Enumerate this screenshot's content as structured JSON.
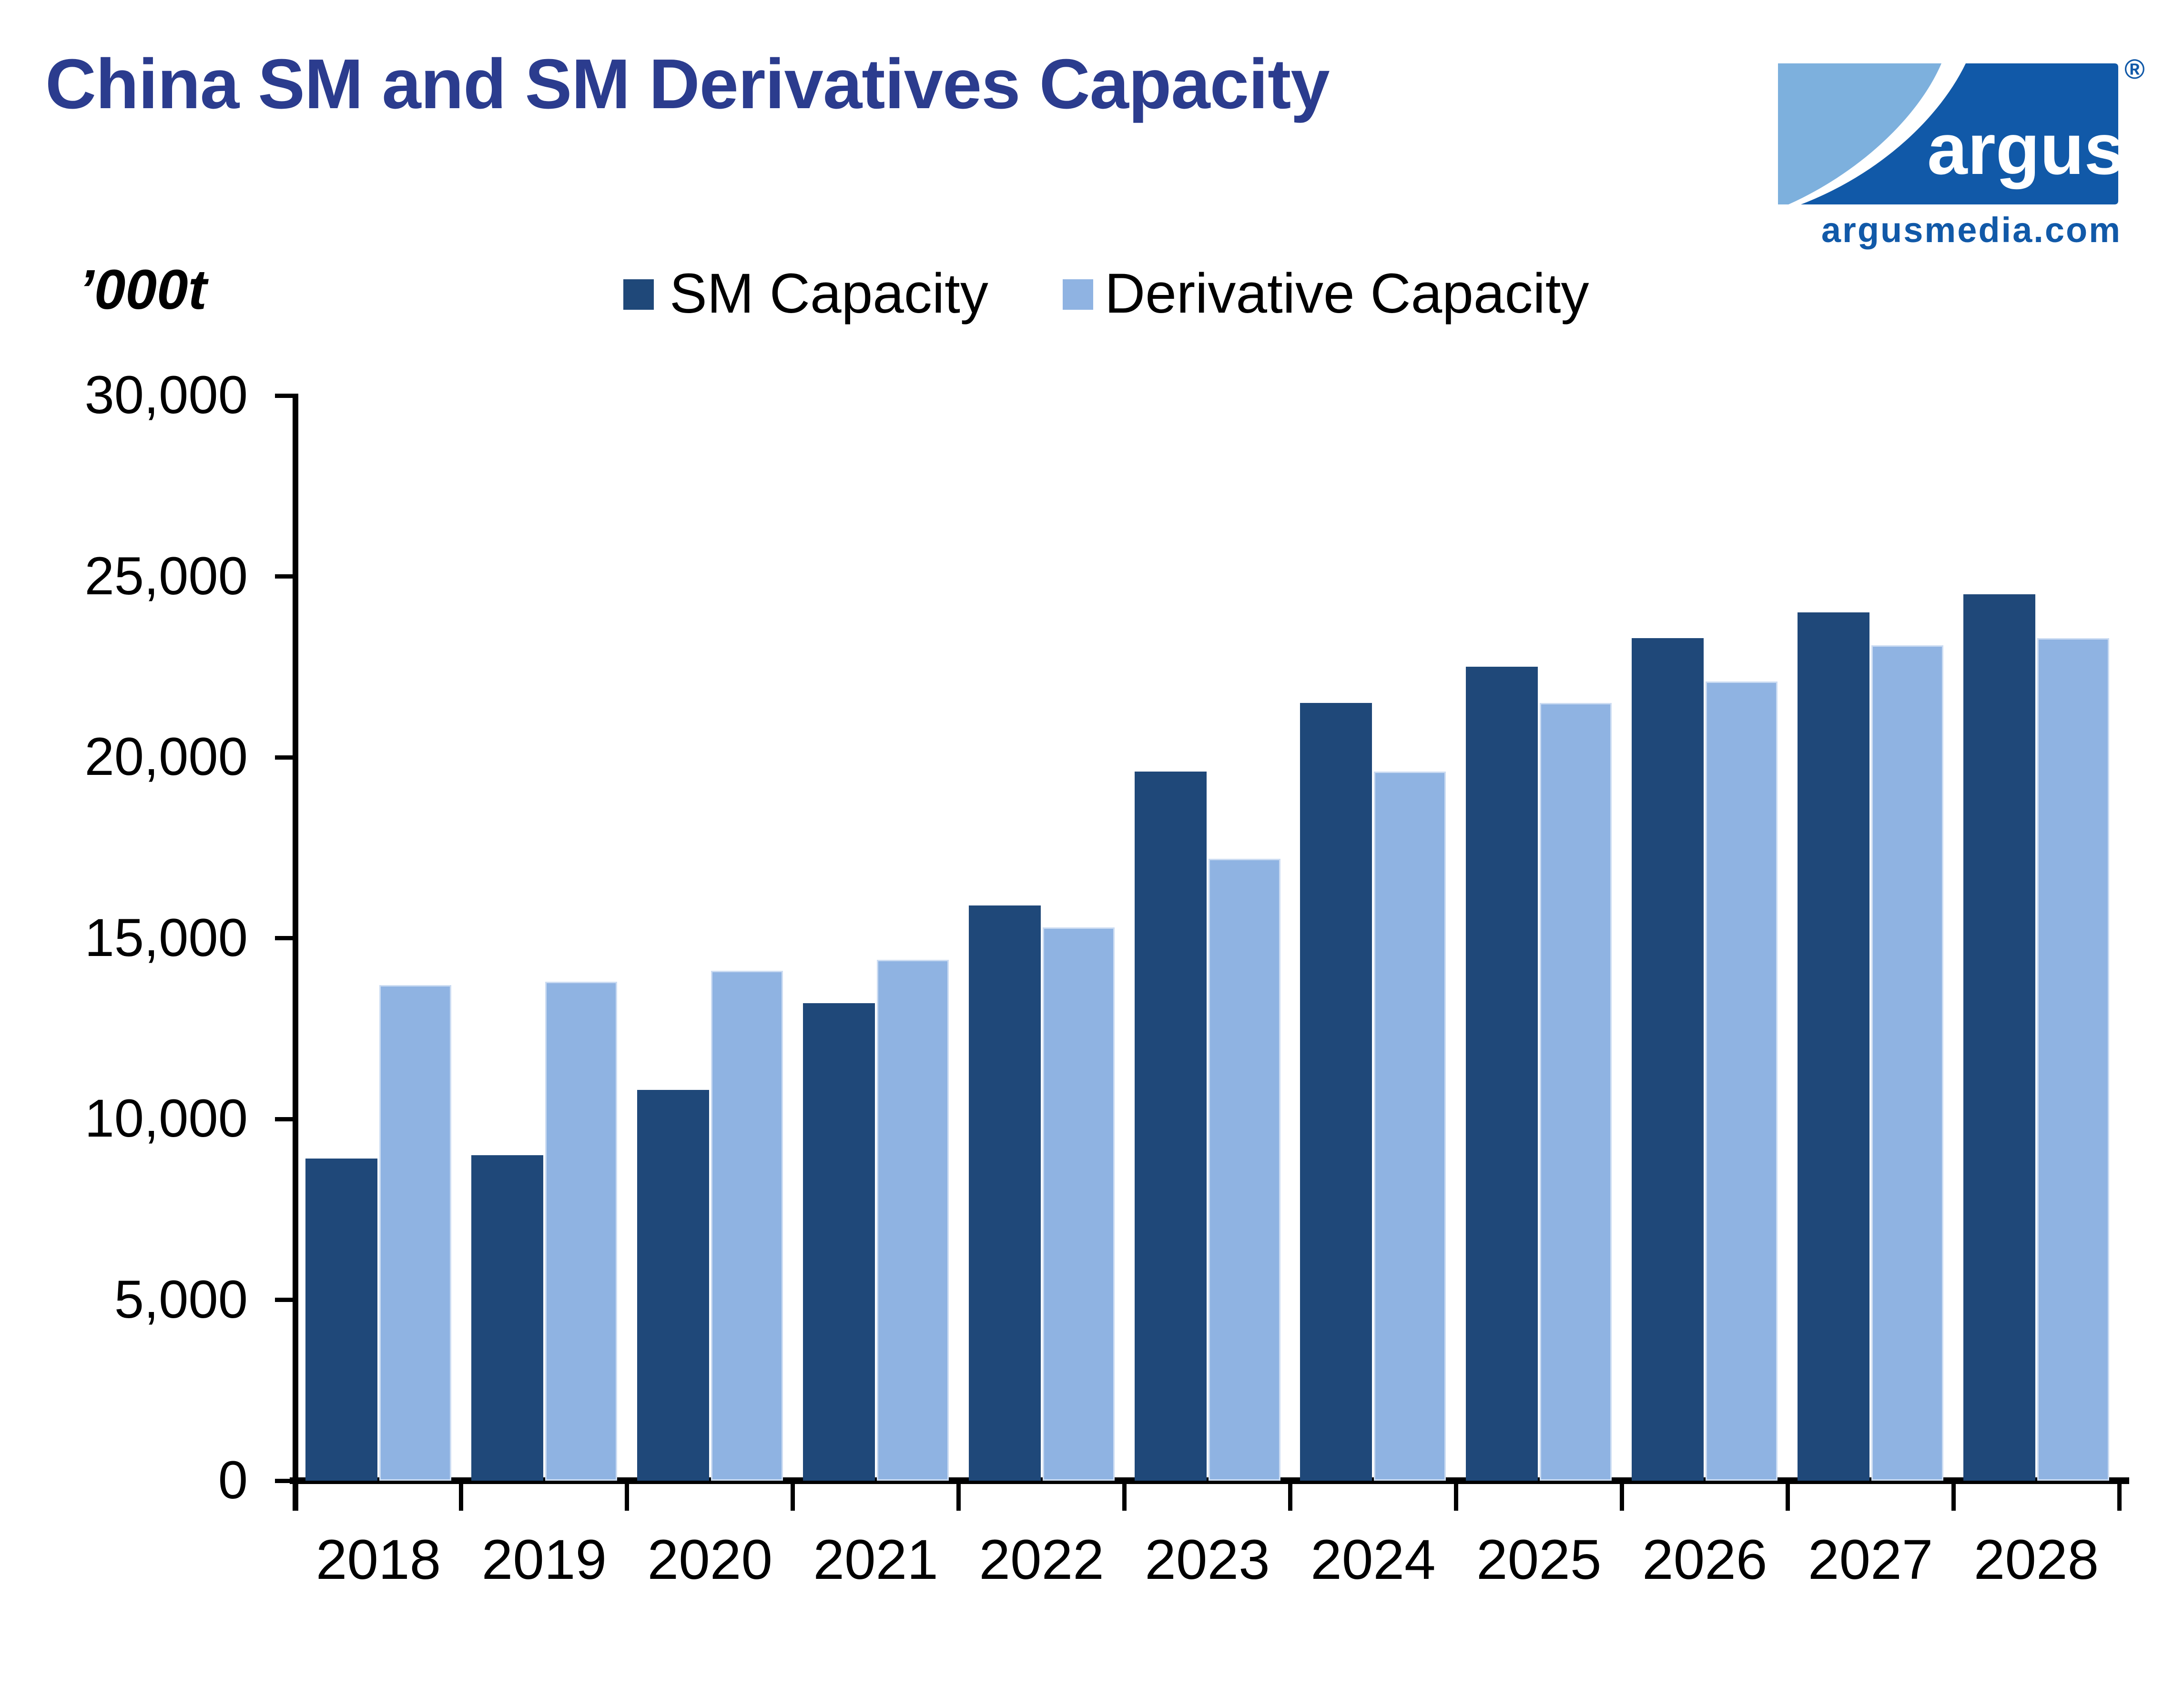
{
  "header": {
    "title": "China SM and SM Derivatives Capacity",
    "title_color": "#2B3C8E"
  },
  "logo": {
    "brand": "argus",
    "registered_mark": "®",
    "site": "argusmedia.com",
    "dark_blue": "#1159A8",
    "light_blue": "#7DB0DD"
  },
  "axis": {
    "unit_label": "’000t",
    "y_tick_labels": [
      "0",
      "5,000",
      "10,000",
      "15,000",
      "20,000",
      "25,000",
      "30,000"
    ]
  },
  "legend": {
    "sm_label": "SM Capacity",
    "derivative_label": "Derivative Capacity"
  },
  "chart_data": {
    "type": "bar",
    "title": "China SM and SM Derivatives Capacity",
    "ylabel": "’000t",
    "categories": [
      "2018",
      "2019",
      "2020",
      "2021",
      "2022",
      "2023",
      "2024",
      "2025",
      "2026",
      "2027",
      "2028"
    ],
    "series": [
      {
        "name": "SM Capacity",
        "color": "#1F4879",
        "values": [
          8900,
          9000,
          10800,
          13200,
          15900,
          19600,
          21500,
          22500,
          23300,
          24000,
          24500
        ]
      },
      {
        "name": "Derivative Capacity",
        "color": "#8FB3E2",
        "values": [
          13700,
          13800,
          14100,
          14400,
          15300,
          17200,
          19600,
          21500,
          22100,
          23100,
          23300
        ]
      }
    ],
    "ylim": [
      0,
      30000
    ],
    "y_tick_step": 5000,
    "grid": false,
    "legend_position": "top"
  }
}
